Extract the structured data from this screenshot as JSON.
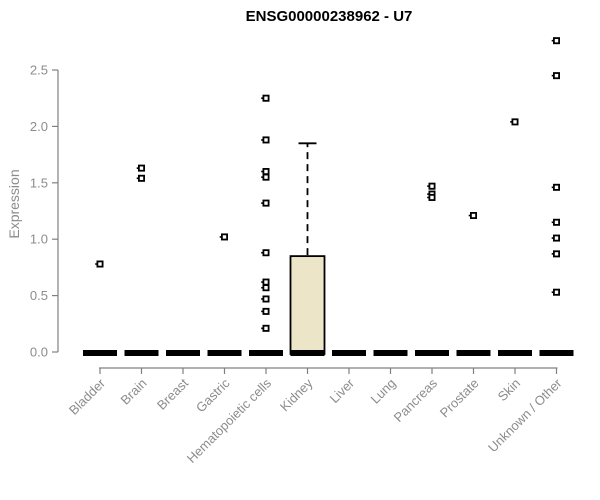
{
  "chart_data": {
    "type": "box",
    "title": "ENSG00000238962 - U7",
    "ylabel": "Expression",
    "xlabel": "",
    "ylim": [
      0,
      2.8
    ],
    "y_tick_values": [
      0,
      0.5,
      1,
      1.5,
      2,
      2.5
    ],
    "y_tick_labels": [
      "0.0",
      "0.5",
      "1.0",
      "1.5",
      "2.0",
      "2.5"
    ],
    "grid": false,
    "legend": "none",
    "categories": [
      "Bladder",
      "Brain",
      "Breast",
      "Gastric",
      "Hematopoietic cells",
      "Kidney",
      "Liver",
      "Lung",
      "Pancreas",
      "Prostate",
      "Skin",
      "Unknown / Other"
    ],
    "series": [
      {
        "category": "Bladder",
        "median": 0,
        "box_low": 0,
        "box_high": 0,
        "upper_whisker": 0,
        "outliers": [
          0.78
        ]
      },
      {
        "category": "Brain",
        "median": 0,
        "box_low": 0,
        "box_high": 0,
        "upper_whisker": 0,
        "outliers": [
          1.63,
          1.54
        ]
      },
      {
        "category": "Breast",
        "median": 0,
        "box_low": 0,
        "box_high": 0,
        "upper_whisker": 0,
        "outliers": []
      },
      {
        "category": "Gastric",
        "median": 0,
        "box_low": 0,
        "box_high": 0,
        "upper_whisker": 0,
        "outliers": [
          1.02
        ]
      },
      {
        "category": "Hematopoietic cells",
        "median": 0,
        "box_low": 0,
        "box_high": 0,
        "upper_whisker": 0,
        "outliers": [
          2.25,
          1.88,
          1.6,
          1.55,
          1.32,
          0.88,
          0.62,
          0.57,
          0.47,
          0.36,
          0.21
        ]
      },
      {
        "category": "Kidney",
        "median": 0,
        "box_low": 0,
        "box_high": 0.85,
        "upper_whisker": 1.85,
        "outliers": []
      },
      {
        "category": "Liver",
        "median": 0,
        "box_low": 0,
        "box_high": 0,
        "upper_whisker": 0,
        "outliers": []
      },
      {
        "category": "Lung",
        "median": 0,
        "box_low": 0,
        "box_high": 0,
        "upper_whisker": 0,
        "outliers": []
      },
      {
        "category": "Pancreas",
        "median": 0,
        "box_low": 0,
        "box_high": 0,
        "upper_whisker": 0,
        "outliers": [
          1.47,
          1.4,
          1.37
        ]
      },
      {
        "category": "Prostate",
        "median": 0,
        "box_low": 0,
        "box_high": 0,
        "upper_whisker": 0,
        "outliers": [
          1.21
        ]
      },
      {
        "category": "Skin",
        "median": 0,
        "box_low": 0,
        "box_high": 0,
        "upper_whisker": 0,
        "outliers": [
          2.04
        ]
      },
      {
        "category": "Unknown / Other",
        "median": 0,
        "box_low": 0,
        "box_high": 0,
        "upper_whisker": 0,
        "outliers": [
          2.76,
          2.45,
          1.46,
          1.15,
          1.01,
          0.87,
          0.53
        ]
      }
    ],
    "colors": {
      "box_fill": "#ece5c8",
      "box_border": "#000000",
      "median_bar": "#000000",
      "outlier": "#000000",
      "axis_line": "#808080",
      "axis_text": "#8c8c8c",
      "title_text": "#000000",
      "background": "#ffffff"
    }
  }
}
